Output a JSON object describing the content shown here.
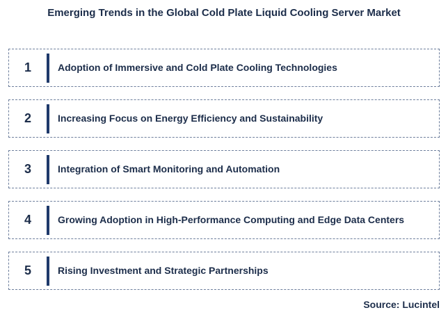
{
  "title": "Emerging Trends in the Global Cold Plate Liquid Cooling Server Market",
  "trends": [
    {
      "number": "1",
      "text": "Adoption of Immersive and Cold Plate Cooling Technologies"
    },
    {
      "number": "2",
      "text": "Increasing Focus on Energy Efficiency and Sustainability"
    },
    {
      "number": "3",
      "text": "Integration of Smart Monitoring and Automation"
    },
    {
      "number": "4",
      "text": "Growing Adoption in High-Performance Computing and Edge Data Centers"
    },
    {
      "number": "5",
      "text": "Rising Investment and Strategic Partnerships"
    }
  ],
  "source": "Source: Lucintel",
  "colors": {
    "text": "#1c2d4a",
    "accent_bar": "#1f3a6b",
    "border": "#6d7e9c"
  }
}
